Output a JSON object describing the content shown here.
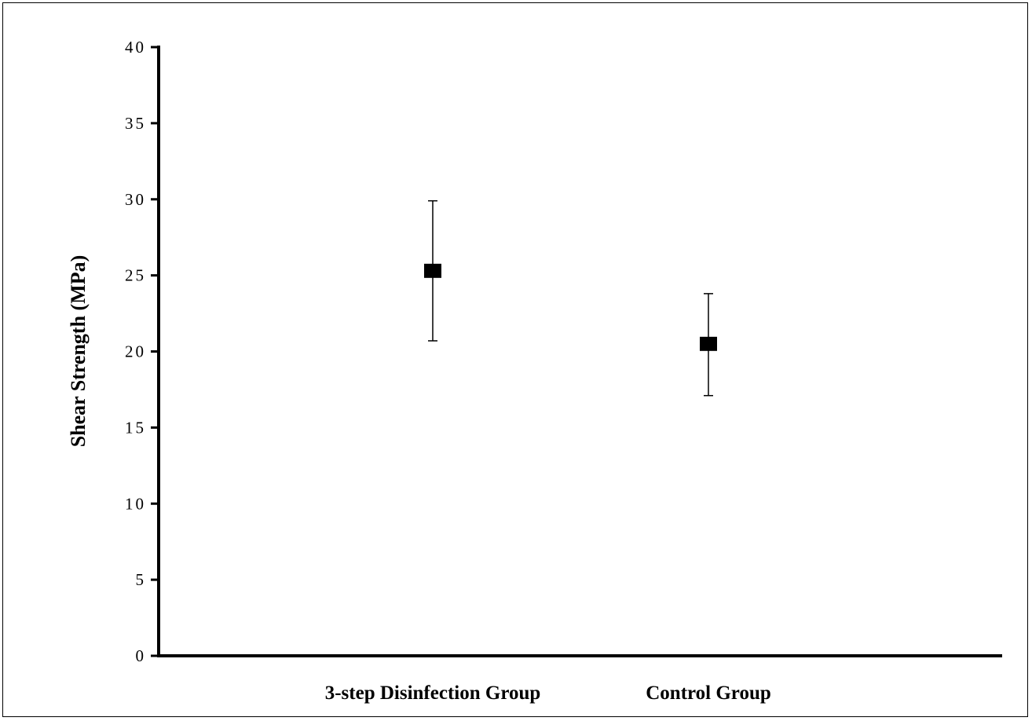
{
  "chart_data": {
    "type": "scatter",
    "title": "",
    "xlabel": "",
    "ylabel": "Shear Strength (MPa)",
    "ylim": [
      0,
      40
    ],
    "yticks": [
      "0",
      "5",
      "10",
      "15",
      "20",
      "25",
      "30",
      "35",
      "40"
    ],
    "categories": [
      "3-step Disinfection Group",
      "Control Group"
    ],
    "series": [
      {
        "values": [
          25.3,
          20.5
        ],
        "error_low": [
          20.7,
          17.1
        ],
        "error_high": [
          29.9,
          23.8
        ]
      }
    ],
    "grid": false,
    "legend": "none",
    "marker": "square",
    "colors": {
      "marker": "#000000",
      "axis": "#000000"
    }
  }
}
